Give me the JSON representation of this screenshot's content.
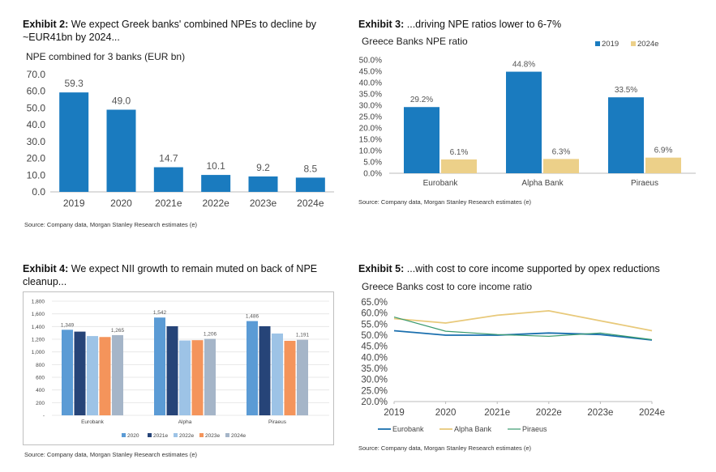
{
  "exhibits": [
    {
      "number": "Exhibit 2:",
      "title": "We expect Greek banks' combined NPEs to decline by ~EUR41bn by 2024...",
      "subtitle": "NPE combined for 3 banks (EUR bn)",
      "source": "Source: Company data, Morgan Stanley Research estimates (e)"
    },
    {
      "number": "Exhibit 3:",
      "title": "...driving NPE ratios lower to 6-7%",
      "subtitle": "Greece Banks NPE ratio",
      "source": "Source: Company data, Morgan Stanley Research estimates (e)"
    },
    {
      "number": "Exhibit 4:",
      "title": "We expect NII growth to remain muted on back of NPE cleanup...",
      "subtitle": "",
      "source": "Source: Company data, Morgan Stanley Research estimates (e)"
    },
    {
      "number": "Exhibit 5:",
      "title": "...with cost to core income supported by opex reductions",
      "subtitle": "Greece Banks cost to core income ratio",
      "source": "Source: Company data, Morgan Stanley Research estimates (e)"
    }
  ],
  "chart_data": [
    {
      "type": "bar",
      "title": "NPE combined for 3 banks (EUR bn)",
      "categories": [
        "2019",
        "2020",
        "2021e",
        "2022e",
        "2023e",
        "2024e"
      ],
      "values": [
        59.3,
        49.0,
        14.7,
        10.1,
        9.2,
        8.5
      ],
      "value_labels": [
        "59.3",
        "49.0",
        "14.7",
        "10.1",
        "9.2",
        "8.5"
      ],
      "ylim": [
        0,
        70
      ],
      "yticks": [
        "0.0",
        "10.0",
        "20.0",
        "30.0",
        "40.0",
        "50.0",
        "60.0",
        "70.0"
      ],
      "color": "#1a7bbf"
    },
    {
      "type": "bar",
      "title": "Greece Banks NPE ratio",
      "categories": [
        "Eurobank",
        "Alpha Bank",
        "Piraeus"
      ],
      "series": [
        {
          "name": "2019",
          "values": [
            29.2,
            44.8,
            33.5
          ],
          "labels": [
            "29.2%",
            "44.8%",
            "33.5%"
          ],
          "color": "#1a7bbf"
        },
        {
          "name": "2024e",
          "values": [
            6.1,
            6.3,
            6.9
          ],
          "labels": [
            "6.1%",
            "6.3%",
            "6.9%"
          ],
          "color": "#ecd089"
        }
      ],
      "ylim": [
        0,
        50
      ],
      "yticks": [
        "0.0%",
        "5.0%",
        "10.0%",
        "15.0%",
        "20.0%",
        "25.0%",
        "30.0%",
        "35.0%",
        "40.0%",
        "45.0%",
        "50.0%"
      ],
      "legend": "top-right"
    },
    {
      "type": "bar",
      "title": "NII",
      "categories": [
        "Eurobank",
        "Alpha",
        "Piraeus"
      ],
      "series": [
        {
          "name": "2020",
          "values": [
            1349,
            1542,
            1486
          ],
          "color": "#5b9bd5"
        },
        {
          "name": "2021e",
          "values": [
            1320,
            1405,
            1405
          ],
          "color": "#264478"
        },
        {
          "name": "2022e",
          "values": [
            1250,
            1180,
            1290
          ],
          "color": "#9dc3e6"
        },
        {
          "name": "2023e",
          "values": [
            1235,
            1185,
            1175
          ],
          "color": "#f4945b"
        },
        {
          "name": "2024e",
          "values": [
            1265,
            1206,
            1191
          ],
          "color": "#a5b5c8"
        }
      ],
      "value_labels": [
        {
          "category": 0,
          "series": 0,
          "text": "1,349"
        },
        {
          "category": 0,
          "series": 4,
          "text": "1,265"
        },
        {
          "category": 1,
          "series": 0,
          "text": "1,542"
        },
        {
          "category": 1,
          "series": 4,
          "text": "1,206"
        },
        {
          "category": 2,
          "series": 0,
          "text": "1,486"
        },
        {
          "category": 2,
          "series": 4,
          "text": "1,191"
        }
      ],
      "ylim": [
        0,
        1800
      ],
      "yticks": [
        "-",
        "200",
        "400",
        "600",
        "800",
        "1,000",
        "1,200",
        "1,400",
        "1,600",
        "1,800"
      ],
      "legend": "bottom"
    },
    {
      "type": "line",
      "title": "Greece Banks cost to core income ratio",
      "x": [
        "2019",
        "2020",
        "2021e",
        "2022e",
        "2023e",
        "2024e"
      ],
      "series": [
        {
          "name": "Eurobank",
          "values": [
            52.0,
            50.0,
            50.0,
            51.0,
            50.3,
            47.8
          ],
          "color": "#1a6fae"
        },
        {
          "name": "Alpha Bank",
          "values": [
            57.5,
            55.5,
            59.0,
            61.0,
            56.5,
            52.0
          ],
          "color": "#e8c97a"
        },
        {
          "name": "Piraeus",
          "values": [
            58.2,
            51.8,
            50.3,
            49.5,
            51.0,
            48.0
          ],
          "color": "#3a9a6e"
        }
      ],
      "ylim": [
        20,
        65
      ],
      "yticks": [
        "20.0%",
        "25.0%",
        "30.0%",
        "35.0%",
        "40.0%",
        "45.0%",
        "50.0%",
        "55.0%",
        "60.0%",
        "65.0%"
      ],
      "legend": "bottom"
    }
  ]
}
